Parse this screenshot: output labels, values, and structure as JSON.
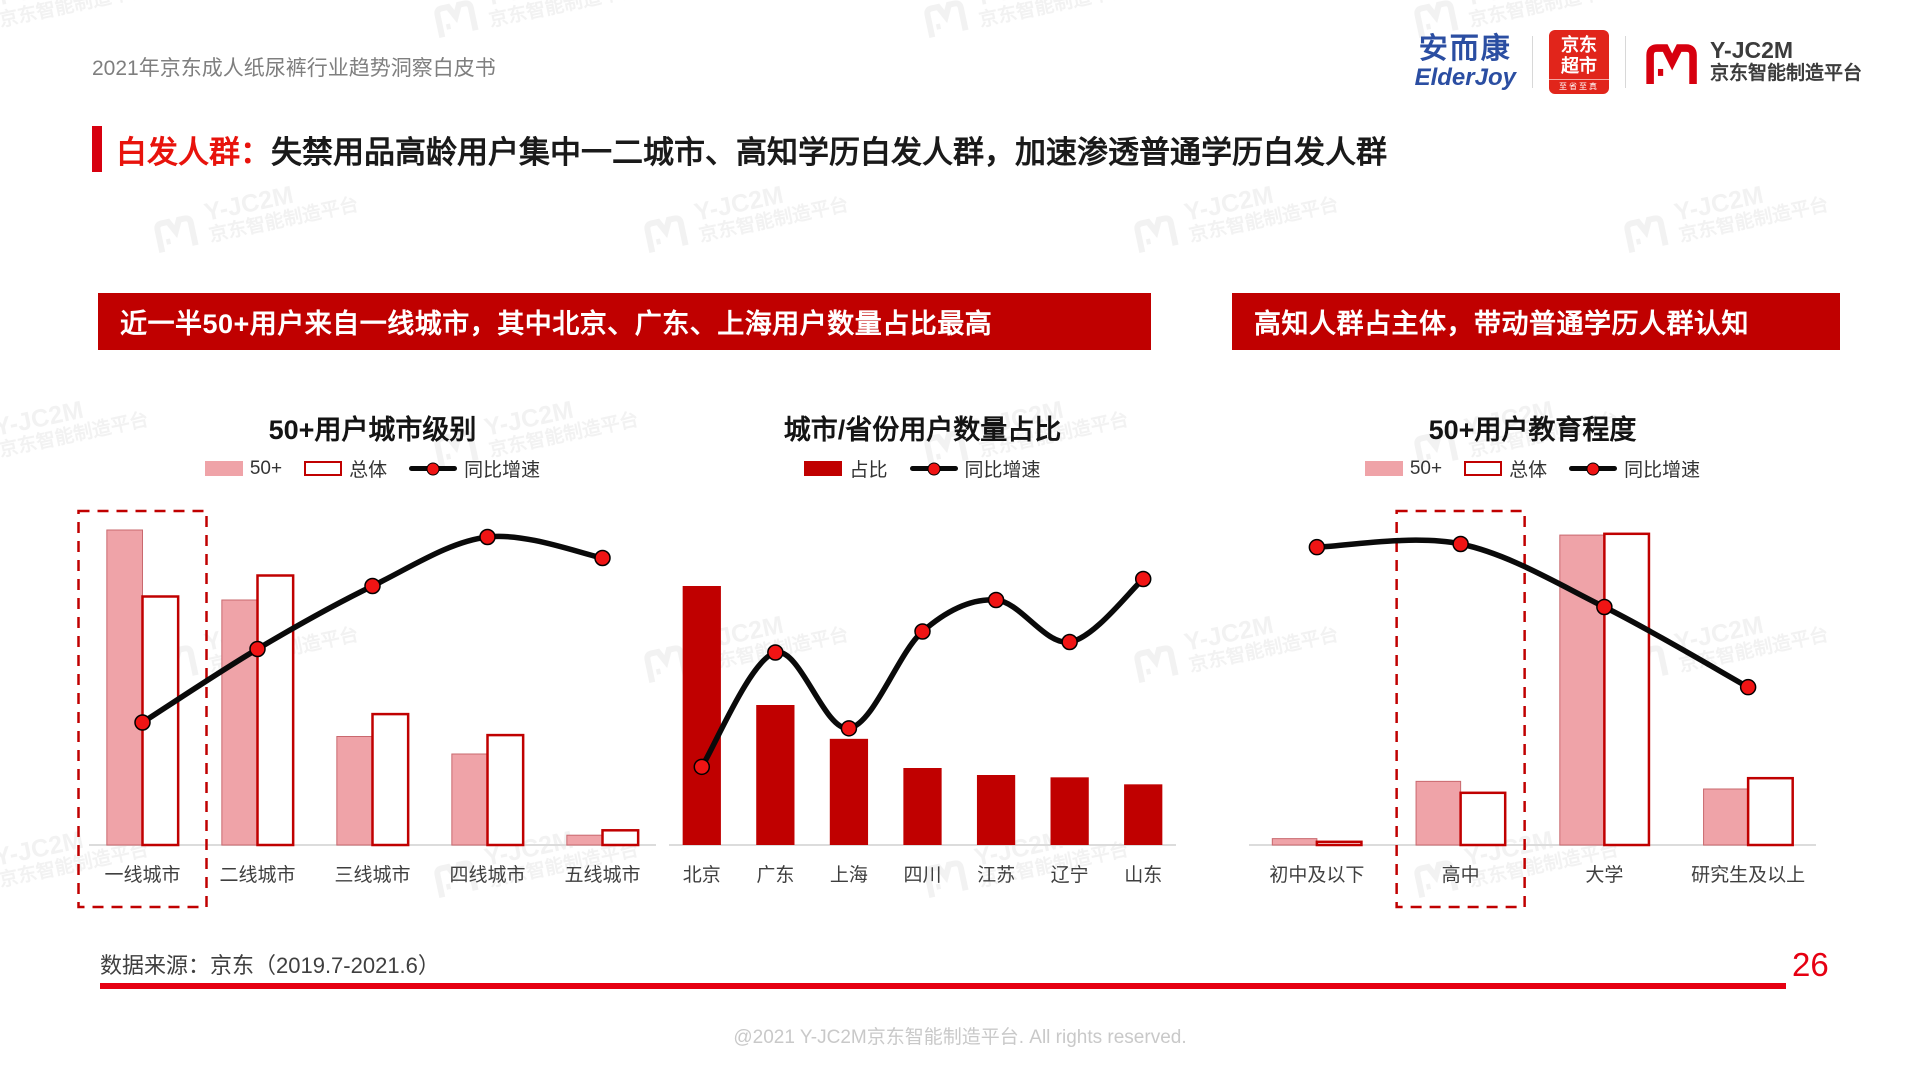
{
  "page": {
    "header_title": "2021年京东成人纸尿裤行业趋势洞察白皮书",
    "source_note": "数据来源：京东（2019.7-2021.6）",
    "page_number": "26",
    "footer": "@2021 Y-JC2M京东智能制造平台. All rights reserved.",
    "watermark": {
      "line1": "Y-JC2M",
      "line2": "京东智能制造平台"
    }
  },
  "logos": {
    "elderjoy": {
      "cn": "安而康",
      "en": "ElderJoy"
    },
    "jd_supermarket": {
      "line1": "京东",
      "line2": "超市",
      "sub": "至省至真"
    },
    "yjc2m": {
      "name": "Y-JC2M",
      "subtitle": "京东智能制造平台"
    }
  },
  "headline": {
    "prefix": "白发人群：",
    "text": "失禁用品高龄用户集中一二城市、高知学历白发人群，加速渗透普通学历白发人群"
  },
  "banners": {
    "left": "近一半50+用户来自一线城市，其中北京、广东、上海用户数量占比最高",
    "right": "高知人群占主体，带动普通学历人群认知"
  },
  "colors": {
    "banner_red": "#c00000",
    "solid_bar_red": "#c00000",
    "pink_bar": "#efa3a8",
    "outline_bar_border": "#c00000",
    "line_black": "#0a0a0a",
    "marker_red": "#f01414",
    "accent_red": "#e8130c",
    "rule_red": "#e60012"
  },
  "chart_data": [
    {
      "type": "bar",
      "title": "50+用户城市级别",
      "categories": [
        "一线城市",
        "二线城市",
        "三线城市",
        "四线城市",
        "五线城市"
      ],
      "series": [
        {
          "name": "50+",
          "style": "fill",
          "values": [
            45,
            35,
            15.5,
            13,
            1.4
          ]
        },
        {
          "name": "总体",
          "style": "outline",
          "values": [
            35.5,
            38.5,
            18.7,
            15.7,
            2.1
          ]
        },
        {
          "name": "同比增速",
          "style": "line",
          "values": [
            17.5,
            28,
            37,
            44,
            41
          ]
        }
      ],
      "ylim": [
        0,
        50
      ],
      "value_axis_hidden": true,
      "legend_position": "top",
      "highlight_index": 0,
      "highlight_category": "一线城市"
    },
    {
      "type": "bar",
      "title": "城市/省份用户数量占比",
      "categories": [
        "北京",
        "广东",
        "上海",
        "四川",
        "江苏",
        "辽宁",
        "山东"
      ],
      "series": [
        {
          "name": "占比",
          "style": "solid",
          "values": [
            22.2,
            12,
            9.1,
            6.6,
            6,
            5.8,
            5.2
          ]
        },
        {
          "name": "同比增速",
          "style": "line",
          "values": [
            6.7,
            16.5,
            10,
            18.3,
            21,
            17.4,
            22.8
          ]
        }
      ],
      "ylim": [
        0,
        30
      ],
      "value_axis_hidden": true,
      "legend_position": "top",
      "highlight_index": null
    },
    {
      "type": "bar",
      "title": "50+用户教育程度",
      "categories": [
        "初中及以下",
        "高中",
        "大学",
        "研究生及以上"
      ],
      "series": [
        {
          "name": "50+",
          "style": "fill",
          "values": [
            1,
            10,
            48.7,
            8.8
          ]
        },
        {
          "name": "总体",
          "style": "outline",
          "values": [
            0.5,
            8.2,
            48.9,
            10.5
          ]
        },
        {
          "name": "同比增速",
          "style": "line",
          "values": [
            46.8,
            47.3,
            37.4,
            24.8
          ]
        }
      ],
      "ylim": [
        0,
        55
      ],
      "value_axis_hidden": true,
      "legend_position": "top",
      "highlight_index": 1,
      "highlight_category": "高中"
    }
  ]
}
